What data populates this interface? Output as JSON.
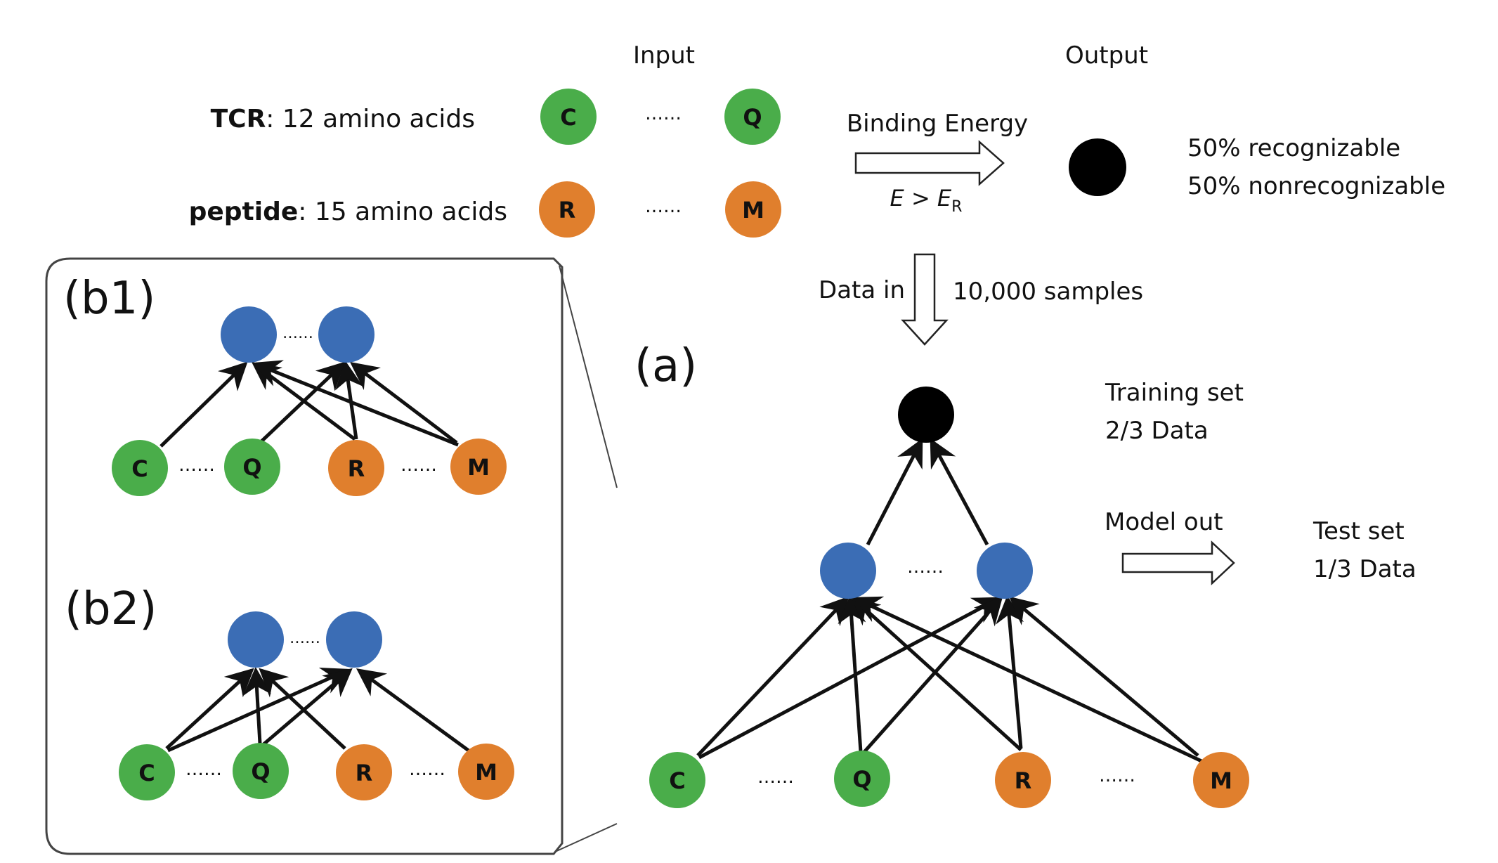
{
  "header": {
    "input_label": "Input",
    "output_label": "Output"
  },
  "inputs": {
    "tcr_label_bold": "TCR",
    "tcr_label_rest": ": 12 amino acids",
    "peptide_label_bold": "peptide",
    "peptide_label_rest": ": 15 amino acids",
    "tcr_first": "C",
    "tcr_last": "Q",
    "peptide_first": "R",
    "peptide_last": "M",
    "ellipsis": "……"
  },
  "binding": {
    "label": "Binding Energy",
    "condition_main": "E > E",
    "condition_sub": "R"
  },
  "output": {
    "line1": "50% recognizable",
    "line2": "50% nonrecognizable"
  },
  "data_flow": {
    "data_in": "Data in",
    "samples": "10,000 samples"
  },
  "panel_a": {
    "label": "(a)",
    "training_line1": "Training set",
    "training_line2": "2/3 Data",
    "model_out": "Model out",
    "test_line1": "Test set",
    "test_line2": "1/3 Data"
  },
  "panel_b1": {
    "label": "(b1)"
  },
  "panel_b2": {
    "label": "(b2)"
  },
  "colors": {
    "tcr_green": "#4aad4a",
    "peptide_orange": "#e07f2d",
    "hidden_blue": "#3b6db5",
    "output_black": "#000000"
  }
}
